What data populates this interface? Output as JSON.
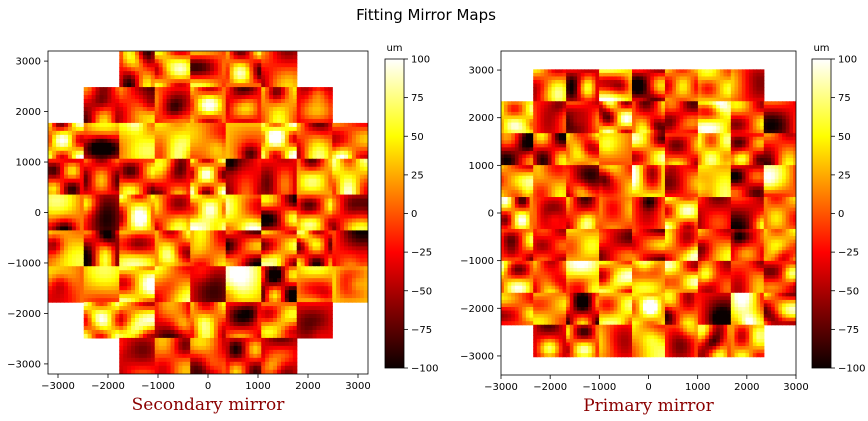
{
  "figure": {
    "title": "Fitting Mirror Maps"
  },
  "chart_data": [
    {
      "type": "heatmap",
      "xlabel": "Secondary mirror",
      "colormap": "hot",
      "colorbar": {
        "label": "um",
        "min": -100,
        "max": 100,
        "ticks": [
          -100,
          -75,
          -50,
          -25,
          0,
          25,
          50,
          75,
          100
        ]
      },
      "xlim": [
        -3200,
        3200
      ],
      "ylim": [
        -3200,
        3200
      ],
      "xticks": [
        -3000,
        -2000,
        -1000,
        0,
        1000,
        2000,
        3000
      ],
      "yticks": [
        -3000,
        -2000,
        -1000,
        0,
        1000,
        2000,
        3000
      ],
      "segment_grid": {
        "columns": 9,
        "rows": 9,
        "segment_size": 710,
        "center_offset_x": 0,
        "center_offset_y": 0
      },
      "segment_rows_top_to_bottom": [
        [
          0,
          0,
          1,
          1,
          1,
          1,
          1,
          0,
          0
        ],
        [
          0,
          1,
          1,
          1,
          1,
          1,
          1,
          1,
          0
        ],
        [
          1,
          1,
          1,
          1,
          1,
          1,
          1,
          1,
          1
        ],
        [
          1,
          1,
          1,
          1,
          1,
          1,
          1,
          1,
          1
        ],
        [
          1,
          1,
          1,
          1,
          1,
          1,
          1,
          1,
          1
        ],
        [
          1,
          1,
          1,
          1,
          1,
          1,
          1,
          1,
          1
        ],
        [
          1,
          1,
          1,
          1,
          1,
          1,
          1,
          1,
          1
        ],
        [
          0,
          1,
          1,
          1,
          1,
          1,
          1,
          1,
          0
        ],
        [
          0,
          0,
          1,
          1,
          1,
          1,
          1,
          0,
          0
        ]
      ],
      "segment_count": 69
    },
    {
      "type": "heatmap",
      "xlabel": "Primary mirror",
      "colormap": "hot",
      "colorbar": {
        "label": "um",
        "min": -100,
        "max": 100,
        "ticks": [
          -100,
          -75,
          -50,
          -25,
          0,
          25,
          50,
          75,
          100
        ]
      },
      "xlim": [
        -3000,
        3000
      ],
      "ylim": [
        -3400,
        3400
      ],
      "xticks": [
        -3000,
        -2000,
        -1000,
        0,
        1000,
        2000,
        3000
      ],
      "yticks": [
        -3000,
        -2000,
        -1000,
        0,
        1000,
        2000,
        3000
      ],
      "segment_grid": {
        "columns": 9,
        "rows": 9,
        "segment_size": 670,
        "center_offset_x": 0,
        "center_offset_y": 0
      },
      "segment_rows_top_to_bottom": [
        [
          0,
          1,
          1,
          1,
          1,
          1,
          1,
          1,
          0
        ],
        [
          1,
          1,
          1,
          1,
          1,
          1,
          1,
          1,
          1
        ],
        [
          1,
          1,
          1,
          1,
          1,
          1,
          1,
          1,
          1
        ],
        [
          1,
          1,
          1,
          1,
          1,
          1,
          1,
          1,
          1
        ],
        [
          1,
          1,
          1,
          1,
          1,
          1,
          1,
          1,
          1
        ],
        [
          1,
          1,
          1,
          1,
          1,
          1,
          1,
          1,
          1
        ],
        [
          1,
          1,
          1,
          1,
          1,
          1,
          1,
          1,
          1
        ],
        [
          1,
          1,
          1,
          1,
          1,
          1,
          1,
          1,
          1
        ],
        [
          0,
          1,
          1,
          1,
          1,
          1,
          1,
          1,
          0
        ]
      ],
      "segment_count": 77
    }
  ]
}
